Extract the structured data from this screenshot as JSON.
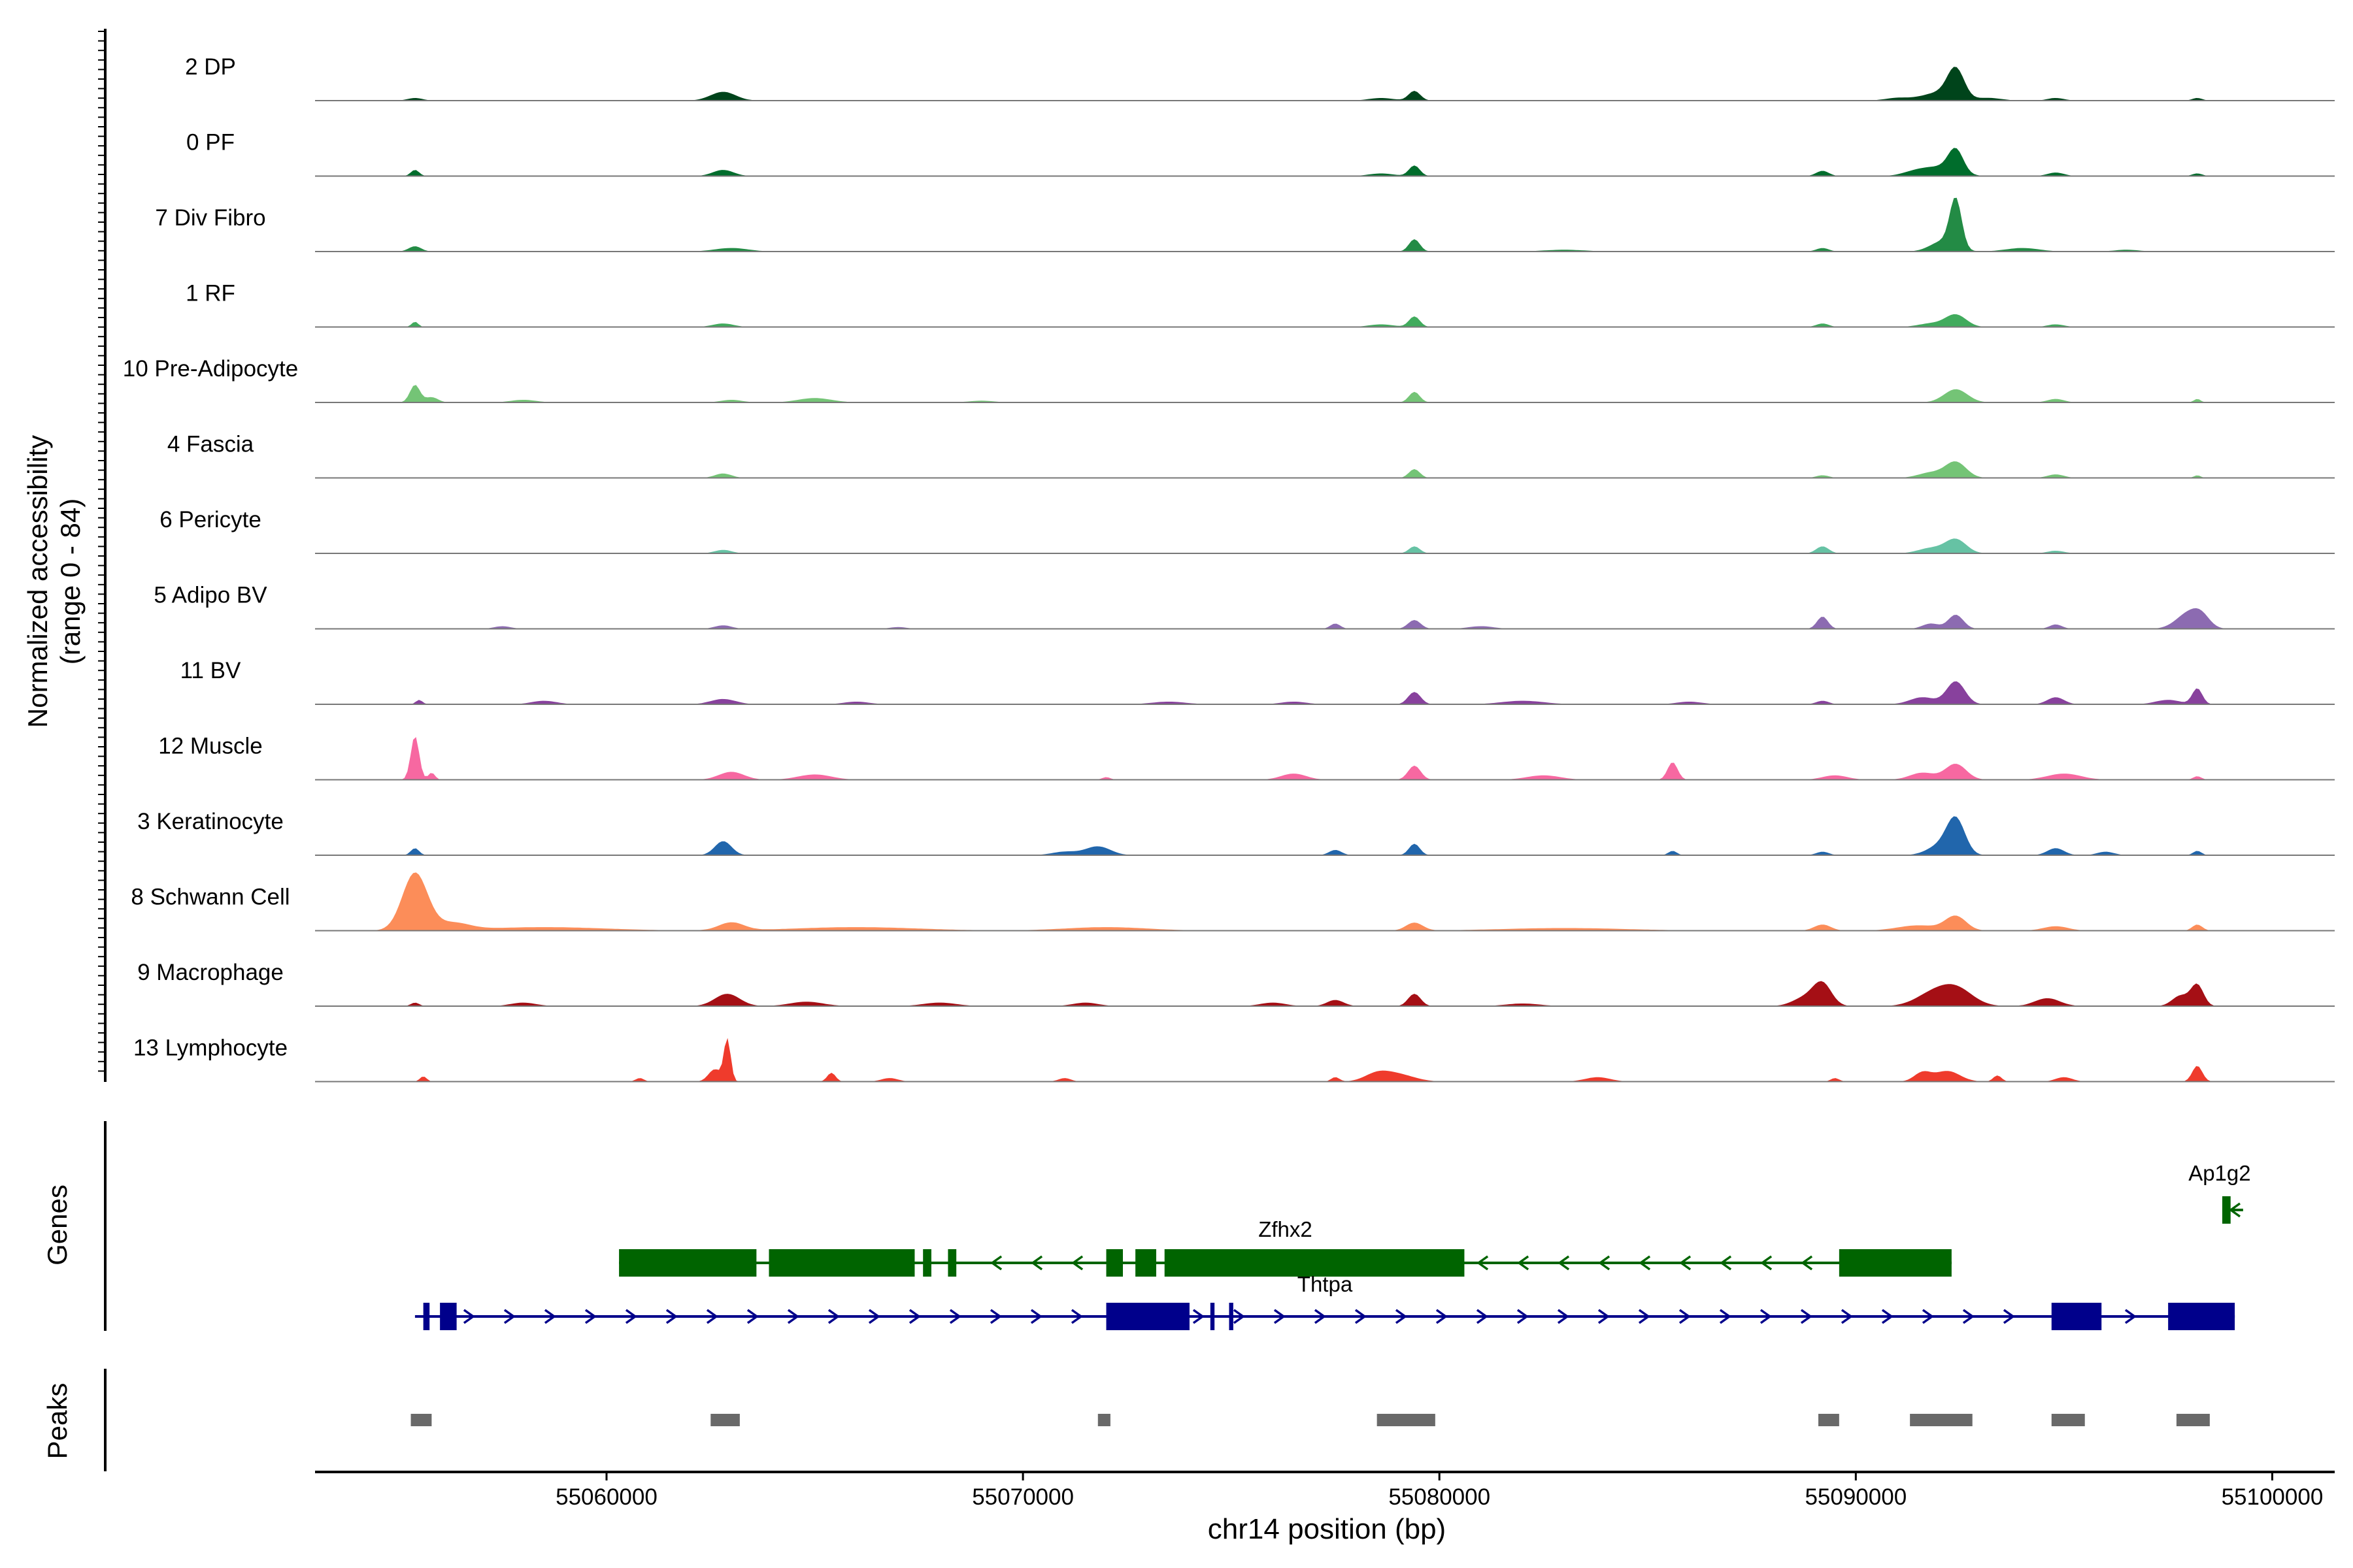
{
  "chart_data": {
    "type": "area",
    "title": "",
    "xlabel": "chr14 position (bp)",
    "ylabel": "Normalized accessibility",
    "ylabel_range": "(range 0 - 84)",
    "xlim": [
      55053000,
      55101500
    ],
    "ylim": [
      0,
      84
    ],
    "x_ticks": [
      55060000,
      55070000,
      55080000,
      55090000,
      55100000
    ],
    "x_tick_labels": [
      "55060000",
      "55070000",
      "55080000",
      "55090000",
      "55100000"
    ],
    "panel_labels": {
      "genes": "Genes",
      "peaks": "Peaks"
    },
    "series": [
      {
        "name": "2 DP",
        "color": "#00441b",
        "peaks": [
          [
            55055400,
            3,
            180
          ],
          [
            55062800,
            10,
            300
          ],
          [
            55079400,
            11,
            140
          ],
          [
            55078600,
            3,
            300
          ],
          [
            55092400,
            33,
            200
          ],
          [
            55092000,
            9,
            400
          ],
          [
            55091000,
            3,
            300
          ],
          [
            55093200,
            3,
            300
          ],
          [
            55094800,
            3,
            200
          ],
          [
            55098200,
            3,
            120
          ]
        ]
      },
      {
        "name": "0 PF",
        "color": "#006d2c",
        "peaks": [
          [
            55055400,
            7,
            100
          ],
          [
            55062800,
            7,
            250
          ],
          [
            55079400,
            12,
            130
          ],
          [
            55078600,
            3,
            300
          ],
          [
            55089200,
            6,
            150
          ],
          [
            55092400,
            26,
            180
          ],
          [
            55092000,
            10,
            400
          ],
          [
            55091400,
            4,
            300
          ],
          [
            55094800,
            4,
            200
          ],
          [
            55098200,
            3,
            120
          ]
        ]
      },
      {
        "name": "7 Div Fibro",
        "color": "#238b45",
        "peaks": [
          [
            55055400,
            6,
            150
          ],
          [
            55063000,
            4,
            400
          ],
          [
            55079400,
            14,
            130
          ],
          [
            55083000,
            2,
            500
          ],
          [
            55089200,
            4,
            150
          ],
          [
            55092400,
            55,
            140
          ],
          [
            55092100,
            12,
            300
          ],
          [
            55094000,
            4,
            400
          ],
          [
            55096500,
            2,
            300
          ]
        ]
      },
      {
        "name": "1 RF",
        "color": "#41ab5d",
        "peaks": [
          [
            55055400,
            6,
            80
          ],
          [
            55062800,
            4,
            250
          ],
          [
            55079400,
            12,
            130
          ],
          [
            55078600,
            3,
            300
          ],
          [
            55089200,
            4,
            150
          ],
          [
            55092400,
            14,
            250
          ],
          [
            55091800,
            4,
            300
          ],
          [
            55094800,
            3,
            200
          ]
        ]
      },
      {
        "name": "10 Pre-Adipocyte",
        "color": "#74c476",
        "peaks": [
          [
            55055400,
            20,
            120
          ],
          [
            55055800,
            6,
            150
          ],
          [
            55058000,
            3,
            300
          ],
          [
            55063000,
            3,
            250
          ],
          [
            55065000,
            5,
            400
          ],
          [
            55069000,
            2,
            300
          ],
          [
            55079400,
            12,
            130
          ],
          [
            55092400,
            15,
            280
          ],
          [
            55094800,
            4,
            200
          ],
          [
            55098200,
            4,
            80
          ]
        ]
      },
      {
        "name": "4 Fascia",
        "color": "#74c476",
        "peaks": [
          [
            55062800,
            5,
            200
          ],
          [
            55079400,
            10,
            130
          ],
          [
            55089200,
            3,
            150
          ],
          [
            55092400,
            18,
            250
          ],
          [
            55091800,
            6,
            300
          ],
          [
            55094800,
            4,
            200
          ],
          [
            55098200,
            3,
            80
          ]
        ]
      },
      {
        "name": "6 Pericyte",
        "color": "#66c2a4",
        "peaks": [
          [
            55062800,
            4,
            200
          ],
          [
            55079400,
            8,
            130
          ],
          [
            55089200,
            8,
            150
          ],
          [
            55092400,
            16,
            250
          ],
          [
            55091800,
            6,
            300
          ],
          [
            55094800,
            3,
            200
          ]
        ]
      },
      {
        "name": "5 Adipo BV",
        "color": "#8c6bb1",
        "peaks": [
          [
            55057500,
            3,
            200
          ],
          [
            55062800,
            4,
            200
          ],
          [
            55067000,
            2,
            200
          ],
          [
            55077500,
            6,
            120
          ],
          [
            55079400,
            10,
            150
          ],
          [
            55081000,
            3,
            300
          ],
          [
            55089200,
            14,
            130
          ],
          [
            55091800,
            6,
            200
          ],
          [
            55092400,
            16,
            180
          ],
          [
            55094800,
            5,
            150
          ],
          [
            55098000,
            18,
            300
          ],
          [
            55098300,
            10,
            200
          ]
        ]
      },
      {
        "name": "11 BV",
        "color": "#88419d",
        "peaks": [
          [
            55055500,
            5,
            80
          ],
          [
            55058500,
            4,
            300
          ],
          [
            55062800,
            6,
            300
          ],
          [
            55066000,
            3,
            300
          ],
          [
            55073500,
            3,
            400
          ],
          [
            55076500,
            3,
            300
          ],
          [
            55079400,
            14,
            150
          ],
          [
            55082000,
            4,
            500
          ],
          [
            55086000,
            3,
            300
          ],
          [
            55089200,
            4,
            150
          ],
          [
            55092400,
            26,
            220
          ],
          [
            55091600,
            8,
            300
          ],
          [
            55094800,
            8,
            200
          ],
          [
            55098200,
            18,
            120
          ],
          [
            55097500,
            5,
            300
          ]
        ]
      },
      {
        "name": "12 Muscle",
        "color": "#f768a1",
        "peaks": [
          [
            55055400,
            50,
            100
          ],
          [
            55055800,
            8,
            80
          ],
          [
            55063000,
            9,
            300
          ],
          [
            55065000,
            6,
            400
          ],
          [
            55072000,
            3,
            100
          ],
          [
            55076500,
            7,
            300
          ],
          [
            55079400,
            16,
            150
          ],
          [
            55082500,
            5,
            400
          ],
          [
            55085600,
            20,
            120
          ],
          [
            55089500,
            5,
            300
          ],
          [
            55092400,
            18,
            250
          ],
          [
            55091600,
            8,
            300
          ],
          [
            55095000,
            7,
            400
          ],
          [
            55098200,
            4,
            100
          ]
        ]
      },
      {
        "name": "3 Keratinocyte",
        "color": "#2166ac",
        "peaks": [
          [
            55055400,
            8,
            100
          ],
          [
            55062800,
            16,
            200
          ],
          [
            55071800,
            10,
            300
          ],
          [
            55071000,
            4,
            300
          ],
          [
            55077500,
            6,
            150
          ],
          [
            55079400,
            13,
            130
          ],
          [
            55085600,
            5,
            100
          ],
          [
            55089200,
            4,
            150
          ],
          [
            55092400,
            40,
            220
          ],
          [
            55092000,
            10,
            300
          ],
          [
            55094800,
            8,
            200
          ],
          [
            55096000,
            4,
            200
          ],
          [
            55098200,
            5,
            100
          ]
        ]
      },
      {
        "name": "8 Schwann Cell",
        "color": "#fc8d59",
        "peaks": [
          [
            55055400,
            65,
            300
          ],
          [
            55056300,
            8,
            400
          ],
          [
            55058500,
            4,
            1500
          ],
          [
            55063000,
            9,
            300
          ],
          [
            55066000,
            4,
            1500
          ],
          [
            55072000,
            4,
            1000
          ],
          [
            55079400,
            9,
            200
          ],
          [
            55083000,
            3,
            1500
          ],
          [
            55089200,
            7,
            200
          ],
          [
            55092400,
            16,
            250
          ],
          [
            55091500,
            6,
            500
          ],
          [
            55094800,
            5,
            300
          ],
          [
            55098200,
            7,
            120
          ]
        ]
      },
      {
        "name": "9 Macrophage",
        "color": "#a50f15",
        "peaks": [
          [
            55055400,
            4,
            100
          ],
          [
            55058000,
            4,
            300
          ],
          [
            55062900,
            14,
            300
          ],
          [
            55064800,
            5,
            400
          ],
          [
            55068000,
            4,
            400
          ],
          [
            55071500,
            4,
            300
          ],
          [
            55076000,
            4,
            300
          ],
          [
            55077500,
            7,
            200
          ],
          [
            55079400,
            14,
            150
          ],
          [
            55082000,
            3,
            400
          ],
          [
            55089200,
            24,
            220
          ],
          [
            55088800,
            10,
            300
          ],
          [
            55092400,
            20,
            400
          ],
          [
            55091800,
            12,
            400
          ],
          [
            55094600,
            9,
            300
          ],
          [
            55098200,
            24,
            150
          ],
          [
            55097800,
            12,
            200
          ]
        ]
      },
      {
        "name": "13 Lymphocyte",
        "color": "#ef3b2c",
        "peaks": [
          [
            55055600,
            6,
            80
          ],
          [
            55060800,
            4,
            100
          ],
          [
            55062900,
            48,
            80
          ],
          [
            55062600,
            14,
            150
          ],
          [
            55065400,
            10,
            100
          ],
          [
            55066800,
            4,
            200
          ],
          [
            55071000,
            4,
            150
          ],
          [
            55077500,
            5,
            100
          ],
          [
            55079000,
            8,
            400
          ],
          [
            55078500,
            8,
            300
          ],
          [
            55083800,
            5,
            300
          ],
          [
            55089500,
            4,
            100
          ],
          [
            55092200,
            12,
            300
          ],
          [
            55091600,
            10,
            200
          ],
          [
            55093400,
            7,
            100
          ],
          [
            55095000,
            5,
            200
          ],
          [
            55098200,
            18,
            120
          ]
        ]
      }
    ],
    "genes": [
      {
        "name": "Ap1g2",
        "strand": "-",
        "color": "#006400",
        "start": 55098800,
        "end": 55099300,
        "exons": [
          [
            55098800,
            55099000
          ]
        ]
      },
      {
        "name": "Zfhx2",
        "strand": "-",
        "color": "#006400",
        "start": 55060300,
        "end": 55092300,
        "exons": [
          [
            55060300,
            55063600
          ],
          [
            55063900,
            55067400
          ],
          [
            55067600,
            55067800
          ],
          [
            55068200,
            55068400
          ],
          [
            55072000,
            55072400
          ],
          [
            55072700,
            55073200
          ],
          [
            55073400,
            55080600
          ],
          [
            55089600,
            55092300
          ]
        ]
      },
      {
        "name": "Thtpa",
        "strand": "+",
        "color": "#00008b",
        "start": 55055400,
        "end": 55099100,
        "exons": [
          [
            55055600,
            55055750
          ],
          [
            55056000,
            55056400
          ],
          [
            55072000,
            55074000
          ],
          [
            55074500,
            55074600
          ],
          [
            55074950,
            55075050
          ],
          [
            55094700,
            55095900
          ],
          [
            55097500,
            55099100
          ]
        ]
      }
    ],
    "peaks": [
      [
        55055300,
        55055800
      ],
      [
        55062500,
        55063200
      ],
      [
        55071800,
        55072100
      ],
      [
        55078500,
        55079900
      ],
      [
        55089100,
        55089600
      ],
      [
        55091300,
        55092800
      ],
      [
        55094700,
        55095500
      ],
      [
        55097700,
        55098500
      ]
    ]
  }
}
